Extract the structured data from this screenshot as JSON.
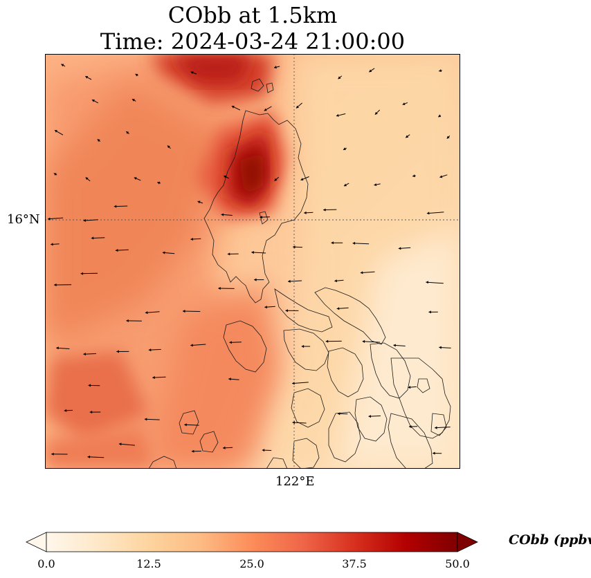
{
  "title_line1": "CObb at 1.5km",
  "title_line2": "Time: 2024-03-24 21:00:00",
  "axes": {
    "lat_label": "16°N",
    "lon_label": "122°E"
  },
  "colorbar": {
    "label": "CObb (ppbv)",
    "ticks": [
      "0.0",
      "12.5",
      "25.0",
      "37.5",
      "50.0"
    ],
    "range": [
      0,
      50
    ],
    "extend": "both",
    "cmap": [
      "#fff7ec",
      "#fee8c8",
      "#fdd49e",
      "#fdbb84",
      "#fc8d59",
      "#ef6548",
      "#d7301f",
      "#b30000",
      "#7f0000"
    ]
  },
  "chart_data": {
    "type": "heatmap",
    "title": "CObb at 1.5km",
    "subtitle": "Time: 2024-03-24 21:00:00",
    "variable": "CObb",
    "units": "ppbv",
    "value_range": [
      0,
      50
    ],
    "gridlines": "dotted, 16°N and 122°E",
    "vectors": "wind arrows, predominantly easterly",
    "hotspots": [
      {
        "region": "north-central (over northern Luzon)",
        "value": 45
      },
      {
        "region": "top center",
        "value": 38
      },
      {
        "region": "western ocean band",
        "value": 28
      },
      {
        "region": "south-west ocean",
        "value": 30
      },
      {
        "region": "eastern ocean",
        "value": 12
      },
      {
        "region": "south-east corner",
        "value": 5
      }
    ]
  }
}
